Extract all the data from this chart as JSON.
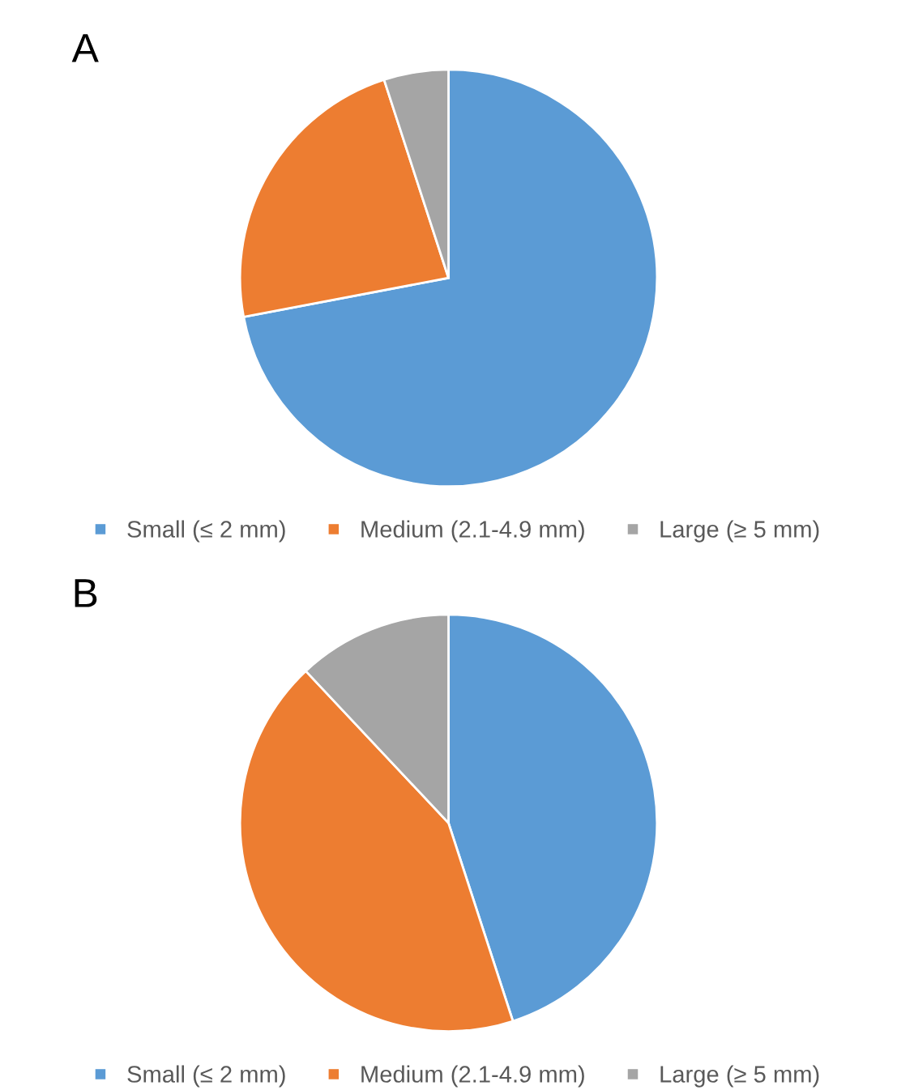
{
  "chart_data": [
    {
      "type": "pie",
      "title": "A",
      "categories": [
        "Small (≤ 2 mm)",
        "Medium (2.1-4.9 mm)",
        "Large (≥ 5 mm)"
      ],
      "values": [
        72,
        23,
        5
      ],
      "colors": [
        "#5b9bd5",
        "#ed7d31",
        "#a5a5a5"
      ],
      "legend": "bottom"
    },
    {
      "type": "pie",
      "title": "B",
      "categories": [
        "Small (≤ 2 mm)",
        "Medium (2.1-4.9 mm)",
        "Large (≥ 5 mm)"
      ],
      "values": [
        45,
        43,
        12
      ],
      "colors": [
        "#5b9bd5",
        "#ed7d31",
        "#a5a5a5"
      ],
      "legend": "bottom"
    }
  ]
}
